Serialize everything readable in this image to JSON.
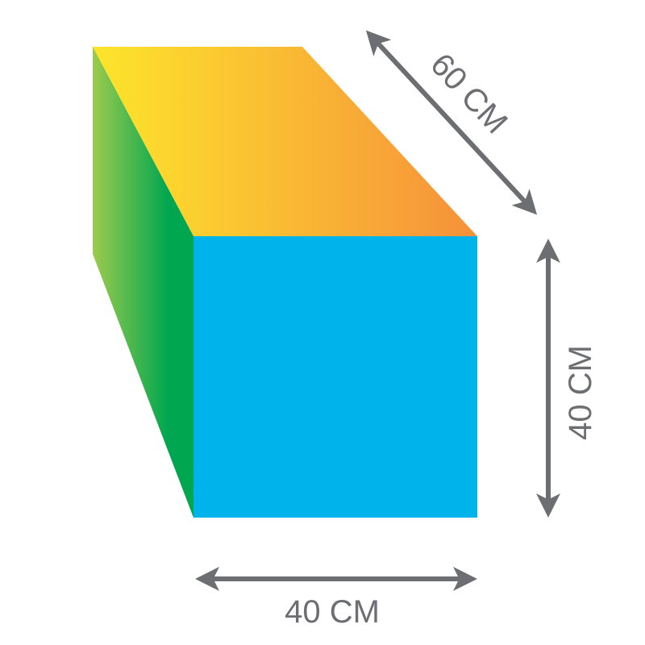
{
  "dimensions": {
    "depth_label": "60 CM",
    "height_label": "40 CM",
    "width_label": "40 CM"
  },
  "colors": {
    "front": "#00b3eb",
    "top_start": "#fde52b",
    "top_end": "#f6903b",
    "side_start": "#9ccb4d",
    "side_end": "#00a650",
    "arrow": "#6d6e71"
  }
}
